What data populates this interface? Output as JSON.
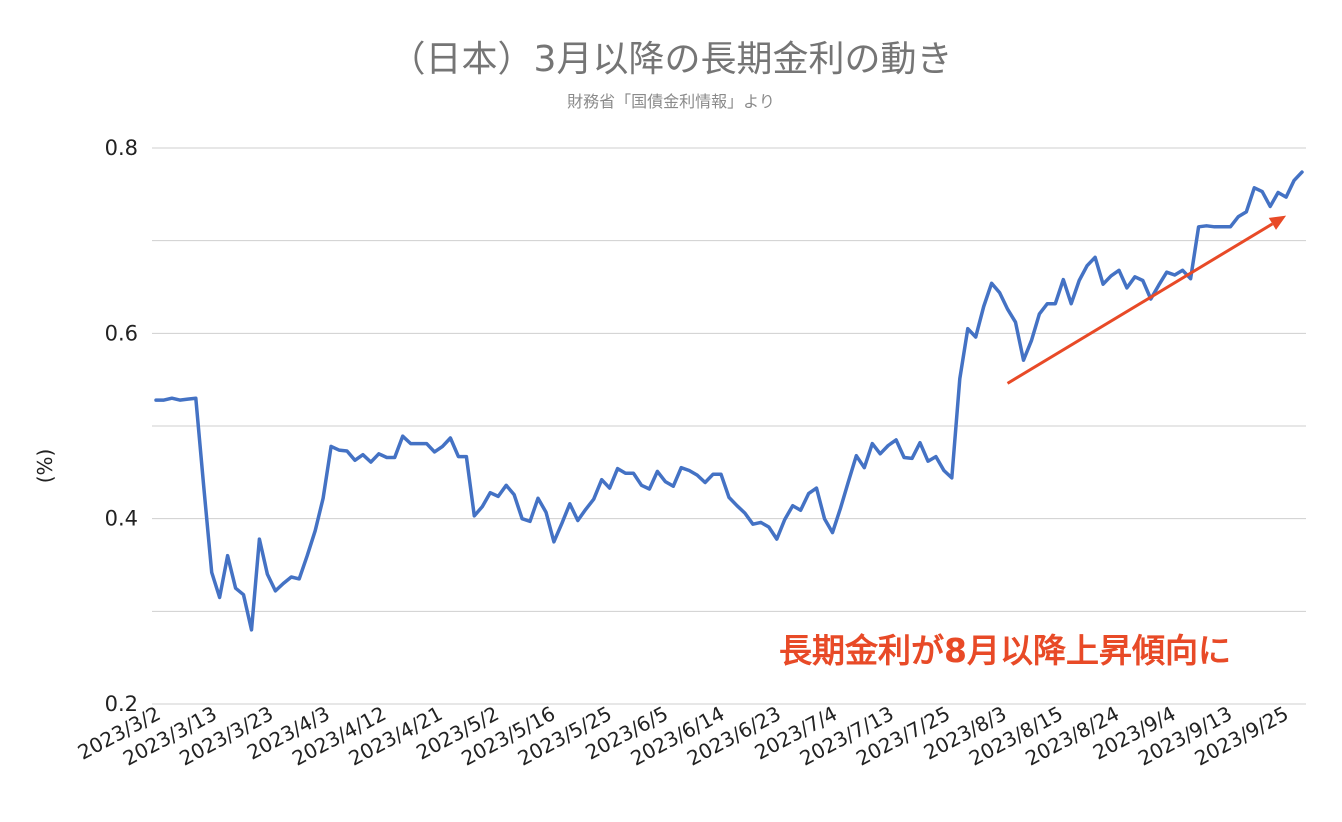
{
  "chart_data": {
    "type": "line",
    "title": "（日本）3月以降の長期金利の動き",
    "subtitle": "財務省「国債金利情報」より",
    "ylabel": "(%)",
    "xlabel": "",
    "ylim": [
      0.2,
      0.8
    ],
    "yticks": [
      0.2,
      0.4,
      0.6,
      0.8
    ],
    "yticks_labels": [
      "0.2",
      "0.4",
      "0.6",
      "0.8"
    ],
    "grid": true,
    "legend": "none",
    "x_tick_labels": [
      "2023/3/2",
      "2023/3/13",
      "2023/3/23",
      "2023/4/3",
      "2023/4/12",
      "2023/4/21",
      "2023/5/2",
      "2023/5/16",
      "2023/5/25",
      "2023/6/5",
      "2023/6/14",
      "2023/6/23",
      "2023/7/4",
      "2023/7/13",
      "2023/7/25",
      "2023/8/3",
      "2023/8/15",
      "2023/8/24",
      "2023/9/4",
      "2023/9/13",
      "2023/9/25"
    ],
    "series": [
      {
        "color": "#4472c4",
        "values": [
          0.528,
          0.528,
          0.53,
          0.528,
          0.529,
          0.53,
          0.435,
          0.342,
          0.315,
          0.36,
          0.325,
          0.318,
          0.28,
          0.378,
          0.34,
          0.322,
          0.33,
          0.337,
          0.335,
          0.36,
          0.387,
          0.422,
          0.478,
          0.474,
          0.473,
          0.463,
          0.469,
          0.461,
          0.47,
          0.466,
          0.466,
          0.489,
          0.481,
          0.481,
          0.481,
          0.472,
          0.478,
          0.487,
          0.467,
          0.467,
          0.403,
          0.413,
          0.428,
          0.424,
          0.436,
          0.426,
          0.4,
          0.397,
          0.422,
          0.407,
          0.375,
          0.395,
          0.416,
          0.398,
          0.41,
          0.421,
          0.442,
          0.433,
          0.454,
          0.449,
          0.449,
          0.436,
          0.432,
          0.451,
          0.44,
          0.435,
          0.455,
          0.452,
          0.447,
          0.439,
          0.448,
          0.448,
          0.423,
          0.414,
          0.406,
          0.394,
          0.396,
          0.391,
          0.378,
          0.399,
          0.414,
          0.409,
          0.427,
          0.433,
          0.4,
          0.385,
          0.411,
          0.44,
          0.468,
          0.455,
          0.481,
          0.47,
          0.479,
          0.485,
          0.466,
          0.465,
          0.482,
          0.462,
          0.467,
          0.452,
          0.444,
          0.551,
          0.605,
          0.596,
          0.629,
          0.654,
          0.644,
          0.626,
          0.612,
          0.571,
          0.592,
          0.621,
          0.632,
          0.632,
          0.658,
          0.632,
          0.657,
          0.673,
          0.682,
          0.653,
          0.662,
          0.668,
          0.649,
          0.661,
          0.657,
          0.637,
          0.652,
          0.666,
          0.663,
          0.668,
          0.659,
          0.715,
          0.716,
          0.715,
          0.715,
          0.715,
          0.726,
          0.731,
          0.757,
          0.753,
          0.737,
          0.752,
          0.747,
          0.765,
          0.774
        ]
      }
    ],
    "annotation": {
      "text": "長期金利が8月以降上昇傾向に",
      "color": "#e84a27"
    },
    "trend_arrow": {
      "color": "#e84a27",
      "from_index": 107,
      "from_value": 0.546,
      "to_index": 142,
      "to_value": 0.727
    }
  }
}
